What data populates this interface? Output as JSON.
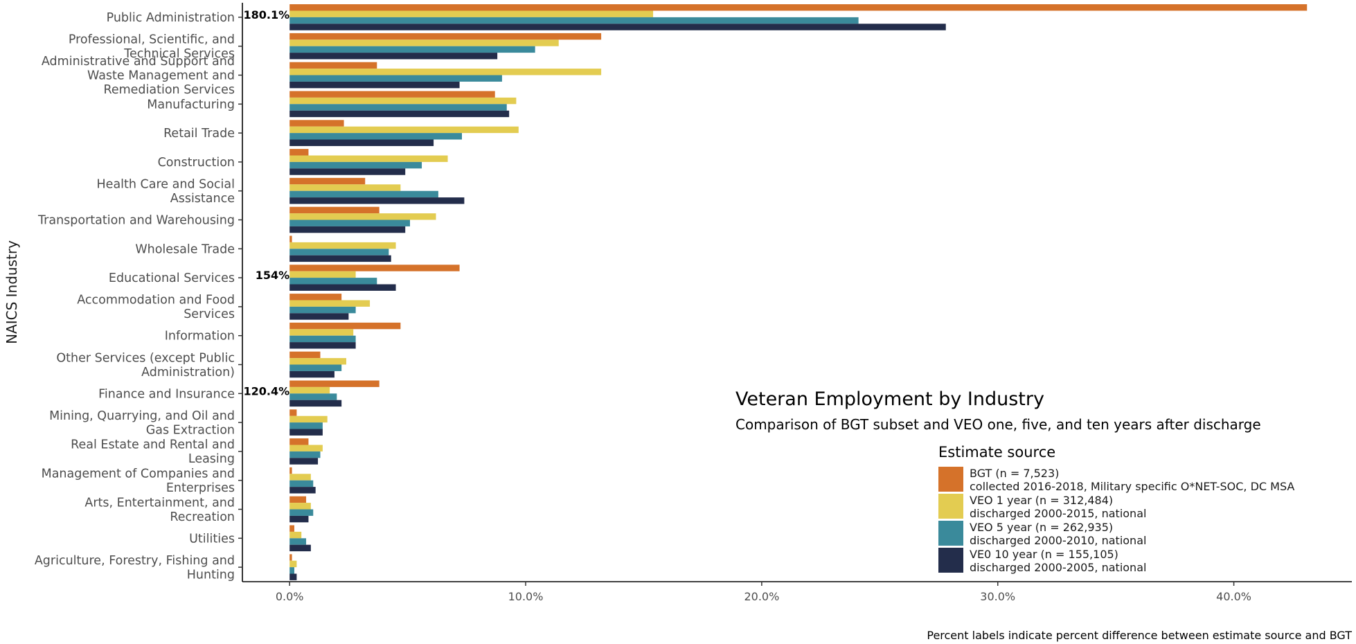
{
  "chart_data": {
    "type": "bar",
    "orientation": "horizontal",
    "title": "Veteran Employment by Industry",
    "subtitle": "Comparison of BGT subset and VEO one, five, and ten years after discharge",
    "ylabel": "NAICS Industry",
    "xlabel": "",
    "xlim": [
      -0.02,
      0.45
    ],
    "x_ticks": [
      0.0,
      0.1,
      0.2,
      0.3,
      0.4
    ],
    "x_tick_labels": [
      "0.0%",
      "10.0%",
      "20.0%",
      "30.0%",
      "40.0%"
    ],
    "grid": false,
    "legend_position": "bottom-right",
    "legend_title": "Estimate source",
    "caption": "Percent labels indicate percent difference between estimate source and BGT",
    "categories": [
      [
        "Public Administration"
      ],
      [
        "Professional, Scientific, and",
        "Technical Services"
      ],
      [
        "Administrative and Support and",
        "Waste Management and",
        "Remediation Services"
      ],
      [
        "Manufacturing"
      ],
      [
        "Retail Trade"
      ],
      [
        "Construction"
      ],
      [
        "Health Care and Social",
        "Assistance"
      ],
      [
        "Transportation and Warehousing"
      ],
      [
        "Wholesale Trade"
      ],
      [
        "Educational Services"
      ],
      [
        "Accommodation and Food",
        "Services"
      ],
      [
        "Information"
      ],
      [
        "Other Services (except Public",
        "Administration)"
      ],
      [
        "Finance and Insurance"
      ],
      [
        "Mining, Quarrying, and Oil and",
        "Gas Extraction"
      ],
      [
        "Real Estate and Rental and",
        "Leasing"
      ],
      [
        "Management of Companies and",
        "Enterprises"
      ],
      [
        "Arts, Entertainment, and",
        "Recreation"
      ],
      [
        "Utilities"
      ],
      [
        "Agriculture, Forestry, Fishing and",
        "Hunting"
      ]
    ],
    "series": [
      {
        "name": "BGT (n = 7,523)",
        "name_line2": " collected 2016-2018, Military specific O*NET-SOC, DC MSA",
        "color": "#d5722a",
        "values": [
          0.431,
          0.132,
          0.037,
          0.087,
          0.023,
          0.008,
          0.032,
          0.038,
          0.001,
          0.072,
          0.022,
          0.047,
          0.013,
          0.038,
          0.003,
          0.008,
          0.001,
          0.007,
          0.002,
          0.001
        ]
      },
      {
        "name": "VEO 1 year (n = 312,484)",
        "name_line2": " discharged 2000-2015, national",
        "color": "#e3cc51",
        "values": [
          0.154,
          0.114,
          0.132,
          0.096,
          0.097,
          0.067,
          0.047,
          0.062,
          0.045,
          0.028,
          0.034,
          0.027,
          0.024,
          0.017,
          0.016,
          0.014,
          0.009,
          0.009,
          0.005,
          0.003
        ]
      },
      {
        "name": "VEO 5 year (n = 262,935)",
        "name_line2": " discharged 2000-2010, national",
        "color": "#3a8a9b",
        "values": [
          0.241,
          0.104,
          0.09,
          0.092,
          0.073,
          0.056,
          0.063,
          0.051,
          0.042,
          0.037,
          0.028,
          0.028,
          0.022,
          0.02,
          0.014,
          0.013,
          0.01,
          0.01,
          0.007,
          0.002
        ]
      },
      {
        "name": "VE0 10 year (n = 155,105)",
        "name_line2": " discharged 2000-2005, national",
        "color": "#232d4b",
        "values": [
          0.278,
          0.088,
          0.072,
          0.093,
          0.061,
          0.049,
          0.074,
          0.049,
          0.043,
          0.045,
          0.025,
          0.028,
          0.019,
          0.022,
          0.014,
          0.012,
          0.011,
          0.008,
          0.009,
          0.003
        ]
      }
    ],
    "annotations": [
      {
        "category_index": 0,
        "text": "180.1%"
      },
      {
        "category_index": 9,
        "text": "154%"
      },
      {
        "category_index": 13,
        "text": "120.4%"
      }
    ]
  }
}
